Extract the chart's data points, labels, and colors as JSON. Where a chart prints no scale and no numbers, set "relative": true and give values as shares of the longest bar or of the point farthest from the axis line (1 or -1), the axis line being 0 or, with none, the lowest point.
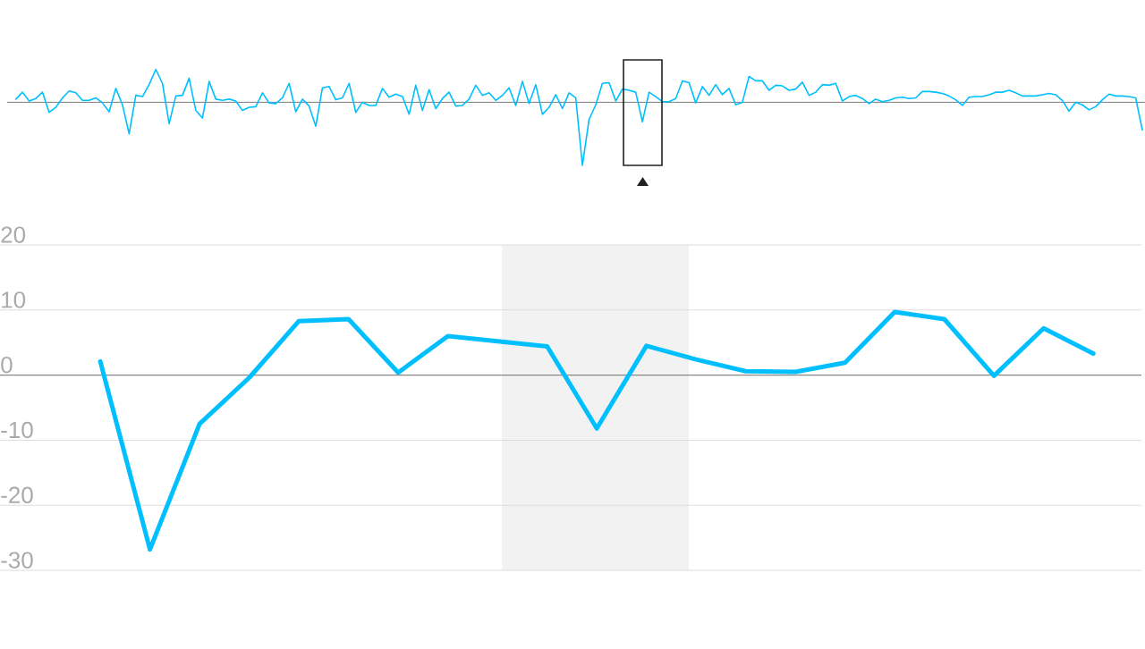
{
  "chart_data": [
    {
      "type": "line",
      "relative": true,
      "color": "#00bfff",
      "tick_labels": false,
      "categories": [
        null,
        null,
        null,
        null,
        null,
        null,
        null,
        null,
        null,
        null,
        null,
        null,
        null,
        null,
        null,
        null,
        null,
        null,
        null,
        null,
        null,
        null,
        null,
        null,
        null,
        null,
        null,
        null,
        null,
        null,
        null,
        null,
        null,
        null,
        null,
        null,
        null,
        null,
        null,
        null,
        null,
        null,
        null,
        null,
        null,
        null,
        null,
        null,
        null,
        null,
        null,
        null,
        null,
        null,
        null,
        null,
        null,
        null,
        null,
        null,
        null,
        null,
        null,
        null,
        null,
        null,
        null,
        null,
        null,
        null,
        null,
        null,
        null,
        null,
        null,
        null,
        null,
        null,
        null,
        null,
        null,
        null,
        null,
        null,
        null,
        null,
        null,
        null,
        null,
        null,
        null,
        null,
        null,
        null,
        null,
        null,
        null,
        null,
        null,
        null,
        null,
        null,
        null,
        null,
        null,
        null,
        null,
        null,
        null,
        null,
        null,
        null,
        null,
        null,
        null,
        null,
        null,
        null,
        null,
        null,
        null,
        null,
        null,
        null,
        null,
        null,
        null,
        null,
        null,
        null,
        null,
        null,
        null,
        null,
        null,
        null,
        null,
        null,
        null,
        null,
        null,
        null,
        null,
        null,
        null,
        null,
        null,
        null,
        null,
        null,
        null,
        null,
        null,
        null,
        null,
        null,
        null,
        null,
        null,
        null,
        null,
        null,
        null,
        null,
        null,
        null,
        null,
        null,
        null,
        null
      ],
      "values": [
        0.05,
        0.16,
        0.02,
        0.06,
        0.16,
        -0.16,
        -0.08,
        0.07,
        0.18,
        0.15,
        0.03,
        0.03,
        0.07,
        -0.01,
        -0.15,
        0.22,
        -0.04,
        -0.5,
        0.11,
        0.09,
        0.28,
        0.52,
        0.3,
        -0.34,
        0.1,
        0.11,
        0.38,
        -0.13,
        -0.25,
        0.33,
        0.05,
        0.03,
        0.05,
        0.02,
        -0.13,
        -0.08,
        -0.07,
        0.15,
        -0.01,
        -0.02,
        0.07,
        0.3,
        -0.15,
        0.05,
        -0.06,
        -0.38,
        0.23,
        0.25,
        0.04,
        0.07,
        0.3,
        -0.16,
        0,
        -0.05,
        -0.05,
        0.22,
        0.08,
        0.13,
        0.09,
        -0.19,
        0.27,
        -0.13,
        0.2,
        -0.1,
        0.06,
        0.16,
        -0.06,
        -0.05,
        0.05,
        0.27,
        0.11,
        0.15,
        0.03,
        0.11,
        0.23,
        -0.05,
        0.33,
        -0.02,
        0.28,
        -0.19,
        -0.08,
        0.12,
        -0.1,
        0.15,
        0.07,
        -1,
        -0.27,
        -0.04,
        0.3,
        0.31,
        0.02,
        0.21,
        0.19,
        0.16,
        -0.31,
        0.16,
        0.09,
        0.01,
        0.01,
        0.06,
        0.34,
        0.31,
        -0.01,
        0.25,
        0.11,
        0.28,
        0.12,
        0.22,
        -0.04,
        0,
        0.41,
        0.34,
        0.34,
        0.19,
        0.27,
        0.26,
        0.19,
        0.21,
        0.32,
        0.11,
        0.16,
        0.28,
        0.27,
        0.3,
        0.02,
        0.09,
        0.11,
        0.06,
        -0.02,
        0.05,
        0.01,
        0.03,
        0.07,
        0.08,
        0.06,
        0.07,
        0.17,
        0.17,
        0.16,
        0.14,
        0.1,
        0.04,
        -0.05,
        0.08,
        0.09,
        0.09,
        0.12,
        0.16,
        0.16,
        0.19,
        0.15,
        0.1,
        0.1,
        0.1,
        0.12,
        0.14,
        0.12,
        0.03,
        -0.14,
        0,
        -0.04,
        -0.12,
        -0.07,
        0.04,
        0.13,
        0.1,
        0.1,
        0.09,
        0.07,
        -0.44
      ]
    },
    {
      "type": "line",
      "color": "#00bfff",
      "grid": "y",
      "tick_labels": "y",
      "ylim": [
        -30,
        20
      ],
      "yticks": [
        -30,
        -20,
        -10,
        0,
        10,
        20
      ],
      "categories": [
        null,
        null,
        null,
        null,
        null,
        null,
        null,
        null,
        null,
        null,
        null,
        null,
        null,
        null,
        null,
        null,
        null,
        null,
        null,
        null,
        null
      ],
      "values": [
        2.1,
        -26.8,
        -7.5,
        -0.4,
        8.3,
        8.6,
        0.4,
        6.0,
        5.2,
        4.4,
        -8.2,
        4.5,
        2.4,
        0.6,
        0.5,
        1.9,
        9.7,
        8.6,
        -0.1,
        7.2,
        3.3
      ]
    }
  ]
}
